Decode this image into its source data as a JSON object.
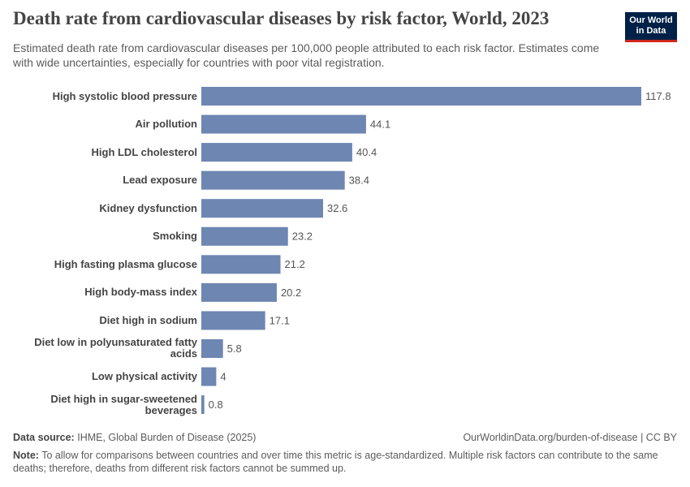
{
  "chart_data": {
    "type": "bar",
    "title": "Death rate from cardiovascular diseases by risk factor, World, 2023",
    "subtitle": "Estimated death rate from cardiovascular diseases per 100,000 people attributed to each risk factor. Estimates come with wide uncertainties, especially for countries with poor vital registration.",
    "categories": [
      "High systolic blood pressure",
      "Air pollution",
      "High LDL cholesterol",
      "Lead exposure",
      "Kidney dysfunction",
      "Smoking",
      "High fasting plasma glucose",
      "High body-mass index",
      "Diet high in sodium",
      "Diet low in polyunsaturated fatty acids",
      "Low physical activity",
      "Diet high in sugar-sweetened beverages"
    ],
    "values": [
      117.8,
      44.1,
      40.4,
      38.4,
      32.6,
      23.2,
      21.2,
      20.2,
      17.1,
      5.8,
      4,
      0.8
    ],
    "color": "#6e86b2",
    "orientation": "horizontal"
  },
  "logo": "Our World in Data",
  "footer": {
    "source_label": "Data source:",
    "source": "IHME, Global Burden of Disease (2025)",
    "url": "OurWorldinData.org/burden-of-disease | CC BY",
    "note_label": "Note:",
    "note": "To allow for comparisons between countries and over time this metric is age-standardized. Multiple risk factors can contribute to the same deaths; therefore, deaths from different risk factors cannot be summed up."
  }
}
